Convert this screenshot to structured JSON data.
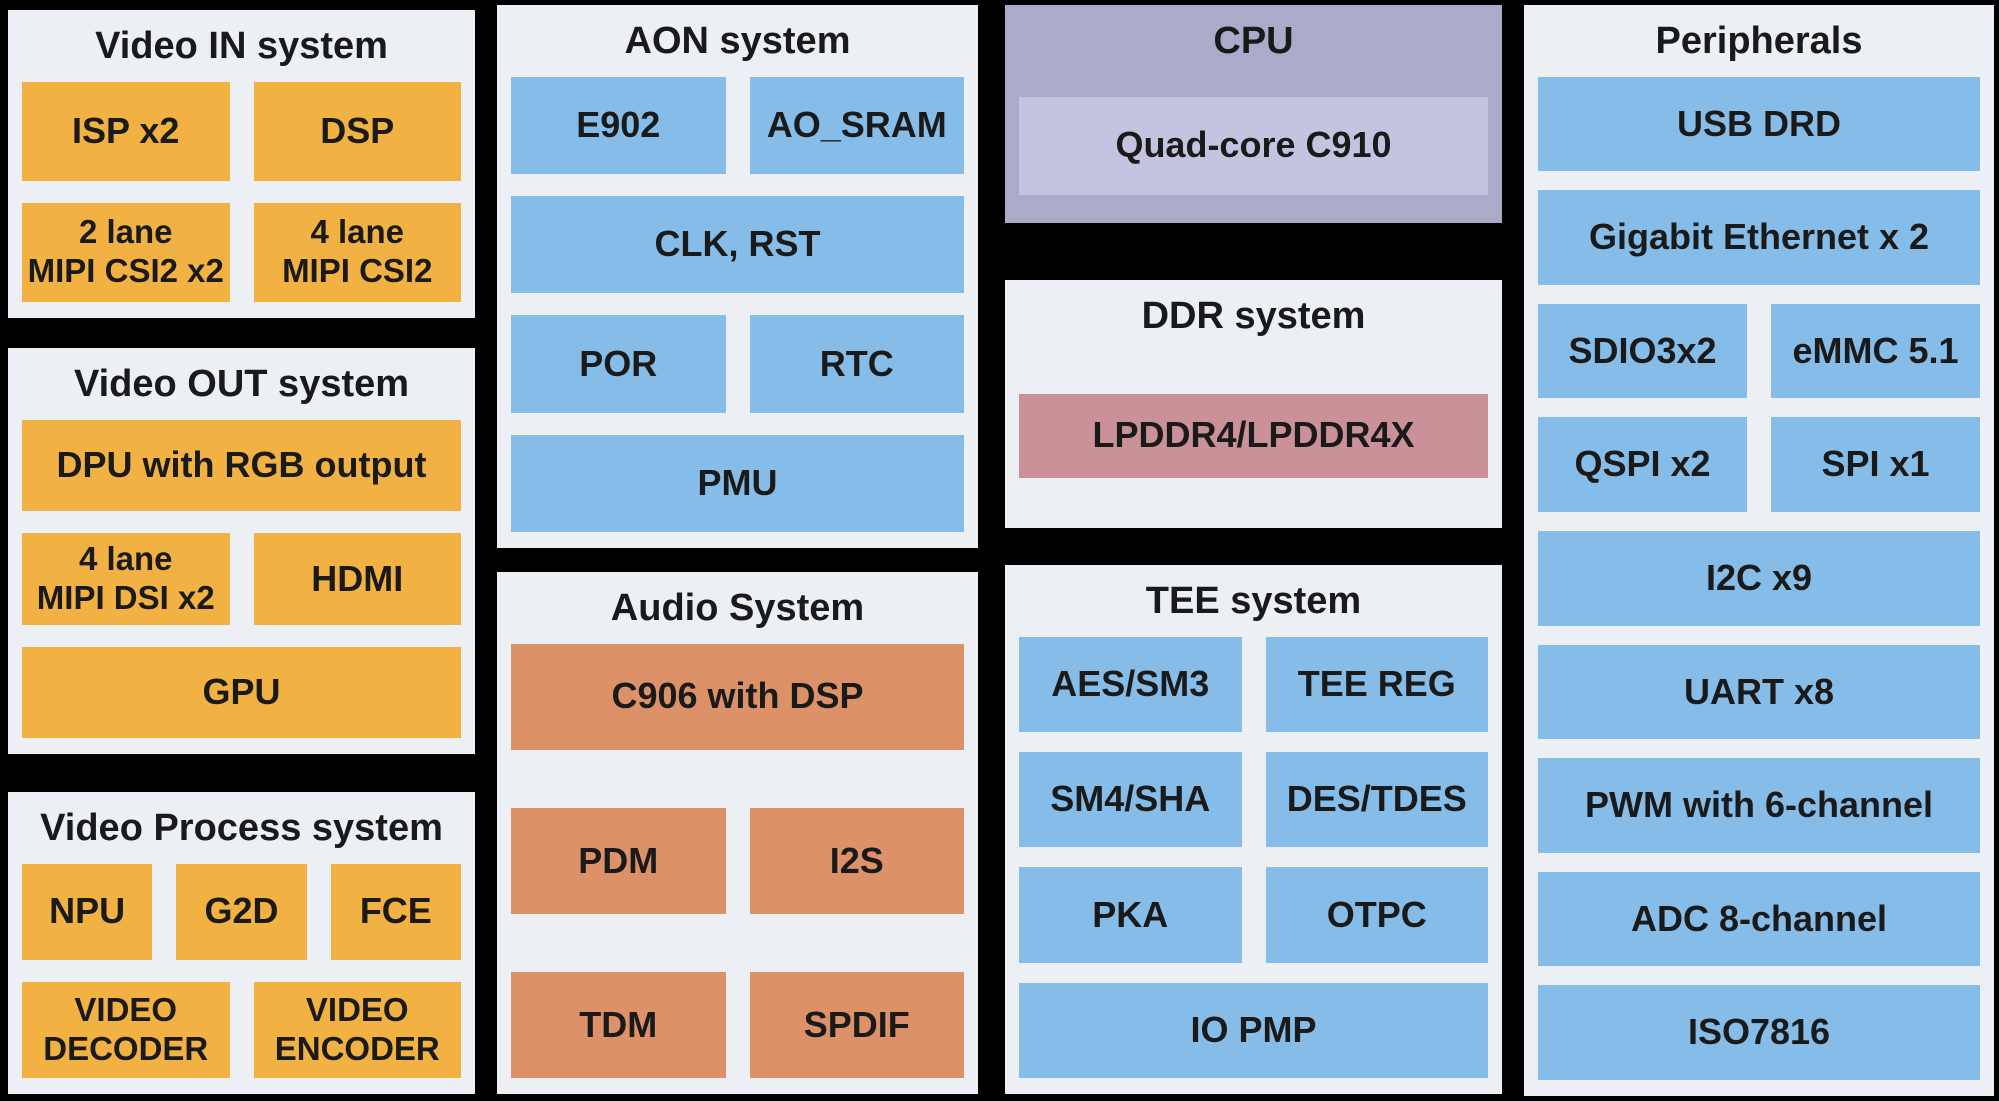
{
  "colors": {
    "background": "#000000",
    "panel_bg": "#ECEFF4",
    "orange": "#F1B143",
    "blue": "#86BDE8",
    "salmon": "#DD9168",
    "cpu_panel": "#A9ABC9",
    "cpu_core_block": "#C5C4E0",
    "ddr_block": "#CB9199",
    "text": "#1A1A1A"
  },
  "panels": {
    "video_in": {
      "title": "Video IN system",
      "blocks": {
        "isp": "ISP x2",
        "dsp": "DSP",
        "mipi_csi2_2lane": "2 lane\nMIPI CSI2 x2",
        "mipi_csi2_4lane": "4 lane\nMIPI CSI2"
      }
    },
    "video_out": {
      "title": "Video OUT system",
      "blocks": {
        "dpu": "DPU with RGB output",
        "mipi_dsi_4lane": "4 lane\nMIPI DSI x2",
        "hdmi": "HDMI",
        "gpu": "GPU"
      }
    },
    "video_process": {
      "title": "Video Process system",
      "blocks": {
        "npu": "NPU",
        "g2d": "G2D",
        "fce": "FCE",
        "video_decoder": "VIDEO\nDECODER",
        "video_encoder": "VIDEO\nENCODER"
      }
    },
    "aon": {
      "title": "AON system",
      "blocks": {
        "e902": "E902",
        "ao_sram": "AO_SRAM",
        "clk_rst": "CLK, RST",
        "por": "POR",
        "rtc": "RTC",
        "pmu": "PMU"
      }
    },
    "audio": {
      "title": "Audio System",
      "blocks": {
        "c906": "C906 with DSP",
        "pdm": "PDM",
        "i2s": "I2S",
        "tdm": "TDM",
        "spdif": "SPDIF"
      }
    },
    "cpu": {
      "title": "CPU",
      "blocks": {
        "c910": "Quad-core C910"
      }
    },
    "ddr": {
      "title": "DDR system",
      "blocks": {
        "lpddr": "LPDDR4/LPDDR4X"
      }
    },
    "tee": {
      "title": "TEE system",
      "blocks": {
        "aes_sm3": "AES/SM3",
        "tee_reg": "TEE REG",
        "sm4_sha": "SM4/SHA",
        "des_tdes": "DES/TDES",
        "pka": "PKA",
        "otpc": "OTPC",
        "io_pmp": "IO PMP"
      }
    },
    "peripherals": {
      "title": "Peripherals",
      "blocks": {
        "usb_drd": "USB DRD",
        "gigabit_ethernet": "Gigabit Ethernet x 2",
        "sdio": "SDIO3x2",
        "emmc": "eMMC 5.1",
        "qspi": "QSPI x2",
        "spi": "SPI x1",
        "i2c": "I2C x9",
        "uart": "UART x8",
        "pwm": "PWM with 6-channel",
        "adc": "ADC 8-channel",
        "iso7816": "ISO7816"
      }
    }
  }
}
